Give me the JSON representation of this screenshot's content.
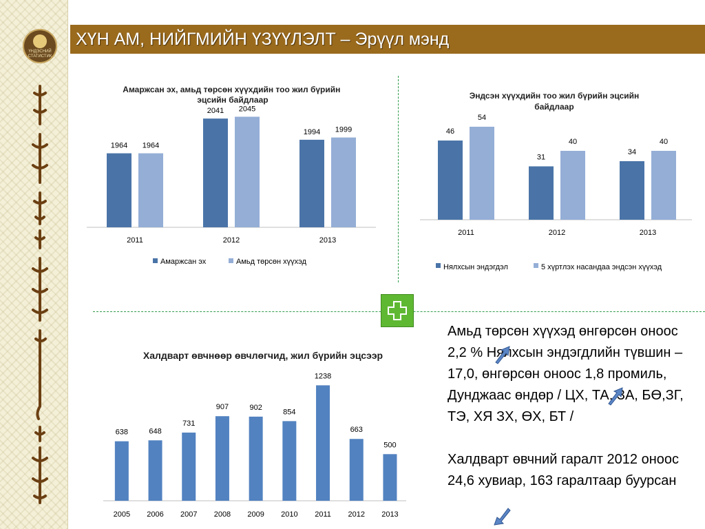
{
  "header": {
    "title": "ХҮН АМ, НИЙГМИЙН ҮЗҮҮЛЭЛТ – Эрүүл мэнд",
    "logo_text": "ҮНДЭСНИЙ СТАТИСТИК"
  },
  "colors": {
    "title_bar": "#9a6a1d",
    "series_dark": "#4a74a8",
    "series_light": "#94aed6",
    "single_series": "#5282c0",
    "divider": "#2e9a4a",
    "plus_icon": "#5fb832",
    "arrow": "#5b86c6"
  },
  "chart_data": [
    {
      "type": "bar",
      "title": "Амаржсан эх, амьд төрсөн хүүхдийн тоо жил бүрийн  эцсийн байдлаар",
      "categories": [
        "2011",
        "2012",
        "2013"
      ],
      "series": [
        {
          "name": "Амаржсан эх",
          "values": [
            1964,
            2041,
            1994
          ]
        },
        {
          "name": "Амьд төрсөн хүүхэд",
          "values": [
            1964,
            2045,
            1999
          ]
        }
      ],
      "legend": "bottom",
      "grid": false
    },
    {
      "type": "bar",
      "title": "Эндсэн хүүхдийн тоо жил бүрийн  эцсийн байдлаар",
      "categories": [
        "2011",
        "2012",
        "2013"
      ],
      "series": [
        {
          "name": "Нялхсын эндэгдэл",
          "values": [
            46,
            31,
            34
          ]
        },
        {
          "name": "5 хүртлэх насандаа эндсэн хүүхэд",
          "values": [
            54,
            40,
            40
          ]
        }
      ],
      "legend": "bottom",
      "grid": false
    },
    {
      "type": "bar",
      "title": "Халдварт өвчнөөр өвчлөгчид, жил бүрийн эцсээр",
      "categories": [
        "2005",
        "2006",
        "2007",
        "2008",
        "2009",
        "2010",
        "2011",
        "2012",
        "2013"
      ],
      "values": [
        638,
        648,
        731,
        907,
        902,
        854,
        1238,
        663,
        500
      ],
      "grid": false
    }
  ],
  "notes": {
    "paragraph1": "Амьд төрсөн хүүхэд  өнгөрсөн оноос    2,2 %   Нялхсын эндэгдлийн түвшин  – 17,0, өнгөрсөн оноос      1,8 промиль, Дунджаас өндөр  /   ЦХ, ТА, ЗА, БӨ,ЗГ, ТЭ, ХЯ ЗХ, ӨХ, БТ /",
    "paragraph2": "Халдварт өвчний гаралт  2012 оноос    24,6 хувиар, 163 гаралтаар буурсан"
  }
}
